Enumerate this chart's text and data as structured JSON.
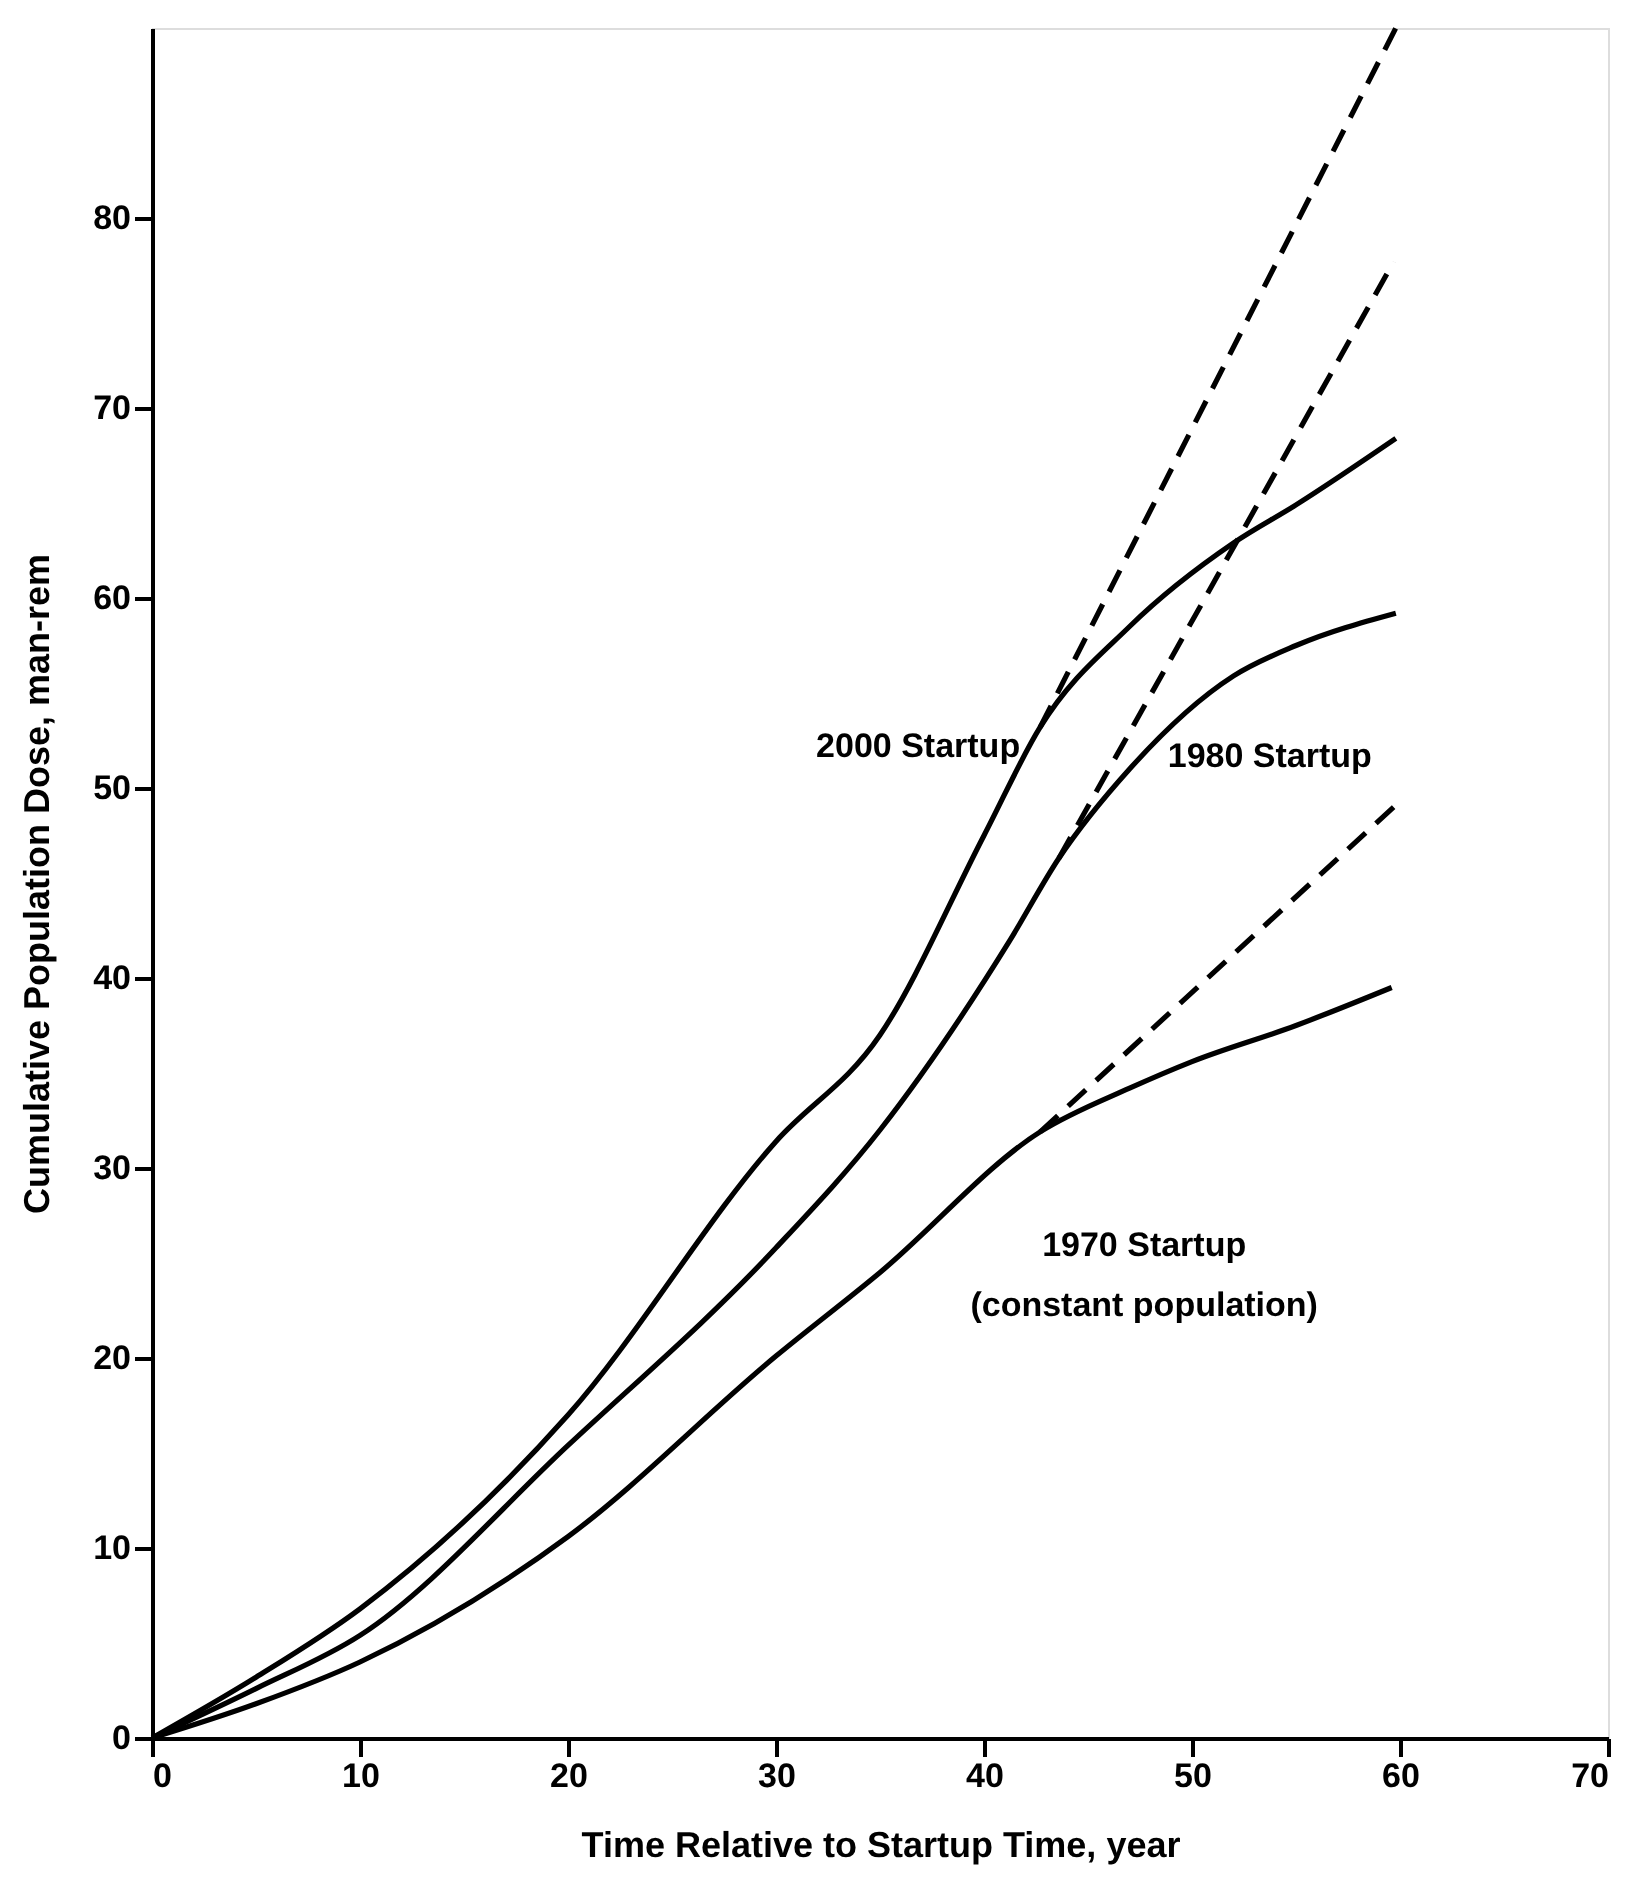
{
  "chart_data": {
    "type": "line",
    "xlabel": "Time Relative to Startup Time, year",
    "ylabel": "Cumulative Population Dose, man-rem",
    "xlim": [
      0,
      70
    ],
    "ylim": [
      0,
      90
    ],
    "xticks": [
      0,
      10,
      20,
      30,
      40,
      50,
      60,
      70
    ],
    "yticks": [
      0,
      10,
      20,
      30,
      40,
      50,
      60,
      70,
      80
    ],
    "grid": false,
    "marker": "none",
    "series": [
      {
        "name": "2000 Startup",
        "color": "#000000",
        "line_style": "solid",
        "x": [
          0,
          5,
          10,
          20,
          30,
          35,
          40,
          42.7,
          47,
          52,
          55,
          59.8
        ],
        "values": [
          0,
          3.2,
          6.8,
          17,
          31.4,
          37,
          47.5,
          53.2,
          58.5,
          62.9,
          64.9,
          68.4
        ]
      },
      {
        "color": "#000000",
        "line_style": "dashed",
        "x": [
          42.7,
          59.8
        ],
        "values": [
          53.2,
          90
        ]
      },
      {
        "name": "1980 Startup",
        "color": "#000000",
        "line_style": "solid",
        "x": [
          0,
          5,
          10,
          20,
          30,
          35,
          41.2,
          43.6,
          47,
          52,
          55,
          59.8
        ],
        "values": [
          0,
          2.6,
          5.4,
          15.4,
          25.8,
          32,
          41.9,
          46.3,
          51,
          55.9,
          57.5,
          59.2
        ]
      },
      {
        "color": "#000000",
        "line_style": "dashed",
        "x": [
          43.6,
          59.7
        ],
        "values": [
          46.3,
          77.7
        ]
      },
      {
        "name": "1970 Startup",
        "color": "#000000",
        "line_style": "solid",
        "x": [
          0,
          5,
          10,
          20,
          30,
          35,
          42.7,
          47,
          50,
          55,
          59.6
        ],
        "values": [
          0,
          1.8,
          4,
          10.6,
          20.1,
          24.5,
          31.9,
          34.2,
          35.6,
          37.5,
          39.5
        ]
      },
      {
        "color": "#000000",
        "line_style": "dashed",
        "x": [
          42.7,
          59.8
        ],
        "values": [
          31.9,
          49.1
        ]
      }
    ],
    "annotations": [
      "(constant population)"
    ]
  }
}
